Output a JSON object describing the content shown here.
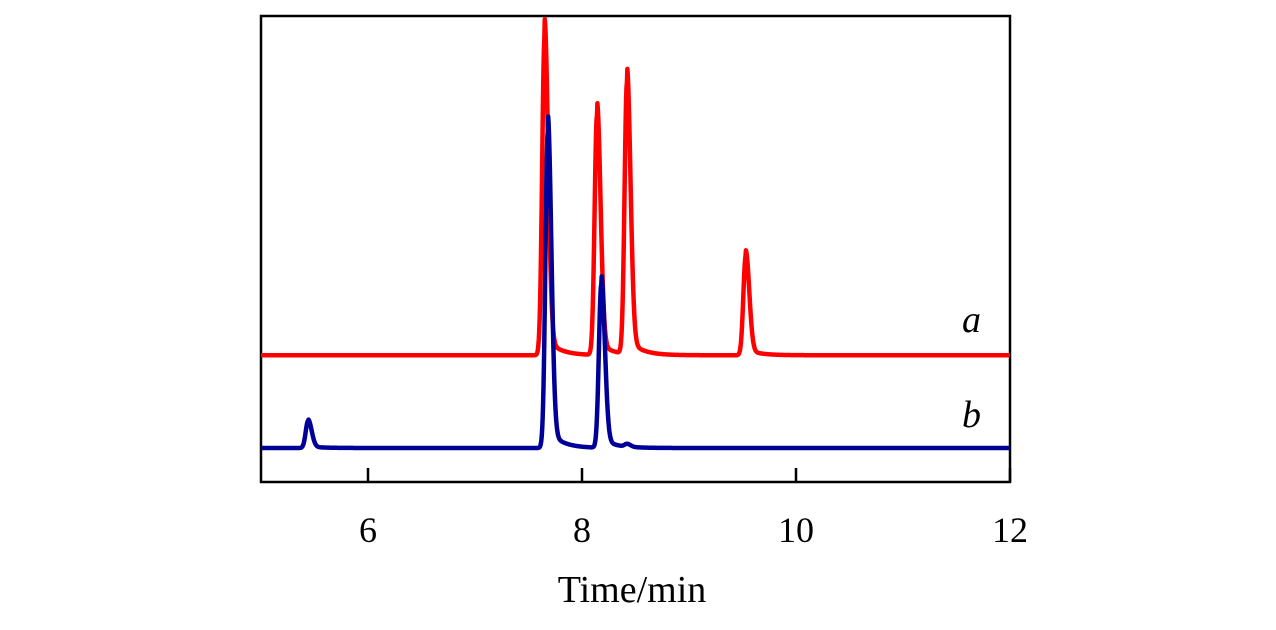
{
  "chart_data": {
    "type": "line",
    "title": "",
    "xlabel": "Time/min",
    "ylabel": "",
    "xlim": [
      5,
      12
    ],
    "ylim": [
      0,
      1
    ],
    "x_ticks": [
      6,
      8,
      10,
      12
    ],
    "y_ticks_shown": false,
    "grid": false,
    "legend": "none",
    "series": [
      {
        "name": "a",
        "color": "#ff0000",
        "baseline": 0.272,
        "peaks": [
          {
            "x": 7.65,
            "height": 0.682
          },
          {
            "x": 8.14,
            "height": 0.514
          },
          {
            "x": 8.42,
            "height": 0.582
          },
          {
            "x": 9.53,
            "height": 0.213
          }
        ]
      },
      {
        "name": "b",
        "color": "#000099",
        "baseline": 0.073,
        "peaks": [
          {
            "x": 5.44,
            "height": 0.058
          },
          {
            "x": 7.68,
            "height": 0.677
          },
          {
            "x": 8.18,
            "height": 0.35
          },
          {
            "x": 8.42,
            "height": 0.006
          }
        ]
      }
    ]
  }
}
